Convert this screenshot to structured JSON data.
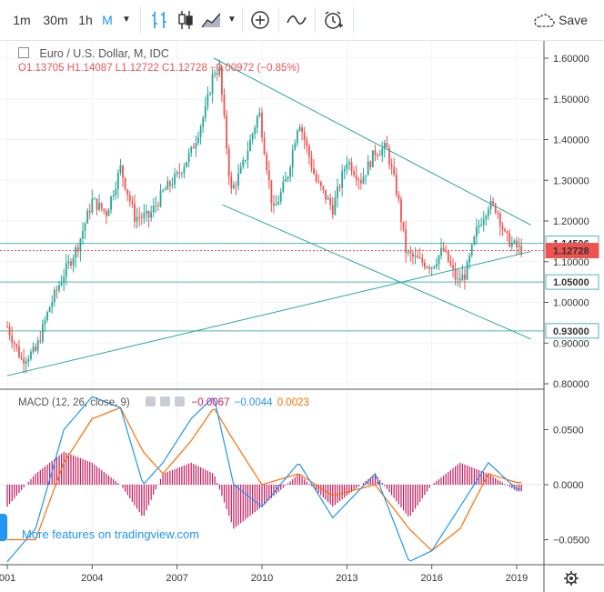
{
  "toolbar": {
    "intervals": [
      "1m",
      "30m",
      "1h",
      "M"
    ],
    "active_interval": "M",
    "save_label": "Save",
    "accent": "#2196f3"
  },
  "legend": {
    "title": "Euro / U.S. Dollar, M, IDC",
    "open": "O1.13705",
    "high": "H1.14087",
    "low": "L1.12722",
    "close": "C1.12728",
    "change": "−0.00972 (−0.85%)"
  },
  "price_axis": {
    "ticks": [
      "1.60000",
      "1.50000",
      "1.40000",
      "1.30000",
      "1.20000",
      "1.10000",
      "1.00000",
      "0.90000",
      "0.80000"
    ],
    "badges": [
      {
        "label": "1.14506",
        "type": "outline",
        "color": "#4db6ac"
      },
      {
        "label": "1.12728",
        "type": "fill",
        "color": "#ef5350"
      },
      {
        "label": "1.05000",
        "type": "outline",
        "color": "#4db6ac"
      },
      {
        "label": "0.93000",
        "type": "outline",
        "color": "#4db6ac"
      }
    ]
  },
  "macd": {
    "label": "MACD (12, 26, close, 9)",
    "hist_value": "−0.0067",
    "macd_value": "−0.0044",
    "signal_value": "0.0023",
    "ticks": [
      "0.0500",
      "0.0000",
      "−0.0500"
    ],
    "colors": {
      "hist": "#c2185b",
      "macd": "#2196f3",
      "signal": "#ff6d00"
    }
  },
  "time_axis": [
    "001",
    "2004",
    "2007",
    "2010",
    "2013",
    "2016",
    "2019"
  ],
  "watermark": "More features on tradingview.com",
  "chart_data": {
    "type": "candlestick",
    "title": "Euro / U.S. Dollar, M, IDC",
    "ylim": [
      0.8,
      1.64
    ],
    "x_range": [
      "2001-01",
      "2019-03"
    ],
    "horizontal_levels": [
      1.14506,
      1.12728,
      1.05,
      0.93
    ],
    "close_series": [
      {
        "t": 2001.0,
        "v": 0.94
      },
      {
        "t": 2001.5,
        "v": 0.86
      },
      {
        "t": 2002.0,
        "v": 0.88
      },
      {
        "t": 2002.5,
        "v": 0.99
      },
      {
        "t": 2003.0,
        "v": 1.07
      },
      {
        "t": 2003.5,
        "v": 1.14
      },
      {
        "t": 2004.0,
        "v": 1.25
      },
      {
        "t": 2004.5,
        "v": 1.22
      },
      {
        "t": 2005.0,
        "v": 1.33
      },
      {
        "t": 2005.5,
        "v": 1.21
      },
      {
        "t": 2006.0,
        "v": 1.21
      },
      {
        "t": 2006.5,
        "v": 1.27
      },
      {
        "t": 2007.0,
        "v": 1.31
      },
      {
        "t": 2007.5,
        "v": 1.37
      },
      {
        "t": 2008.0,
        "v": 1.47
      },
      {
        "t": 2008.3,
        "v": 1.57
      },
      {
        "t": 2008.5,
        "v": 1.57
      },
      {
        "t": 2008.9,
        "v": 1.27
      },
      {
        "t": 2009.3,
        "v": 1.33
      },
      {
        "t": 2009.9,
        "v": 1.47
      },
      {
        "t": 2010.4,
        "v": 1.22
      },
      {
        "t": 2010.9,
        "v": 1.31
      },
      {
        "t": 2011.3,
        "v": 1.45
      },
      {
        "t": 2011.9,
        "v": 1.3
      },
      {
        "t": 2012.5,
        "v": 1.23
      },
      {
        "t": 2013.0,
        "v": 1.35
      },
      {
        "t": 2013.5,
        "v": 1.3
      },
      {
        "t": 2014.0,
        "v": 1.37
      },
      {
        "t": 2014.4,
        "v": 1.38
      },
      {
        "t": 2014.8,
        "v": 1.26
      },
      {
        "t": 2015.1,
        "v": 1.12
      },
      {
        "t": 2015.6,
        "v": 1.1
      },
      {
        "t": 2016.0,
        "v": 1.09
      },
      {
        "t": 2016.4,
        "v": 1.13
      },
      {
        "t": 2016.9,
        "v": 1.05
      },
      {
        "t": 2017.2,
        "v": 1.07
      },
      {
        "t": 2017.6,
        "v": 1.18
      },
      {
        "t": 2018.0,
        "v": 1.24
      },
      {
        "t": 2018.3,
        "v": 1.23
      },
      {
        "t": 2018.6,
        "v": 1.16
      },
      {
        "t": 2018.9,
        "v": 1.14
      },
      {
        "t": 2019.1,
        "v": 1.13
      }
    ],
    "macd_series": [
      {
        "t": 2001.0,
        "macd": -0.07,
        "signal": -0.05
      },
      {
        "t": 2002.0,
        "macd": -0.04,
        "signal": -0.05
      },
      {
        "t": 2003.0,
        "macd": 0.05,
        "signal": 0.02
      },
      {
        "t": 2004.0,
        "macd": 0.08,
        "signal": 0.06
      },
      {
        "t": 2005.0,
        "macd": 0.07,
        "signal": 0.07
      },
      {
        "t": 2005.8,
        "macd": 0.0,
        "signal": 0.03
      },
      {
        "t": 2006.5,
        "macd": 0.02,
        "signal": 0.01
      },
      {
        "t": 2007.5,
        "macd": 0.06,
        "signal": 0.04
      },
      {
        "t": 2008.3,
        "macd": 0.08,
        "signal": 0.07
      },
      {
        "t": 2009.0,
        "macd": 0.0,
        "signal": 0.04
      },
      {
        "t": 2010.0,
        "macd": -0.02,
        "signal": 0.0
      },
      {
        "t": 2011.3,
        "macd": 0.02,
        "signal": 0.01
      },
      {
        "t": 2012.5,
        "macd": -0.03,
        "signal": -0.01
      },
      {
        "t": 2014.0,
        "macd": 0.01,
        "signal": 0.0
      },
      {
        "t": 2015.2,
        "macd": -0.07,
        "signal": -0.04
      },
      {
        "t": 2016.0,
        "macd": -0.06,
        "signal": -0.06
      },
      {
        "t": 2017.0,
        "macd": -0.02,
        "signal": -0.04
      },
      {
        "t": 2018.0,
        "macd": 0.02,
        "signal": 0.01
      },
      {
        "t": 2019.0,
        "macd": -0.004,
        "signal": 0.002
      }
    ],
    "trendlines": [
      {
        "from": {
          "t": 2008.3,
          "v": 1.6
        },
        "to": {
          "t": 2019.5,
          "v": 1.19
        }
      },
      {
        "from": {
          "t": 2008.6,
          "v": 1.24
        },
        "to": {
          "t": 2019.5,
          "v": 0.91
        }
      },
      {
        "from": {
          "t": 2001.0,
          "v": 0.82
        },
        "to": {
          "t": 2019.5,
          "v": 1.125
        }
      }
    ]
  }
}
